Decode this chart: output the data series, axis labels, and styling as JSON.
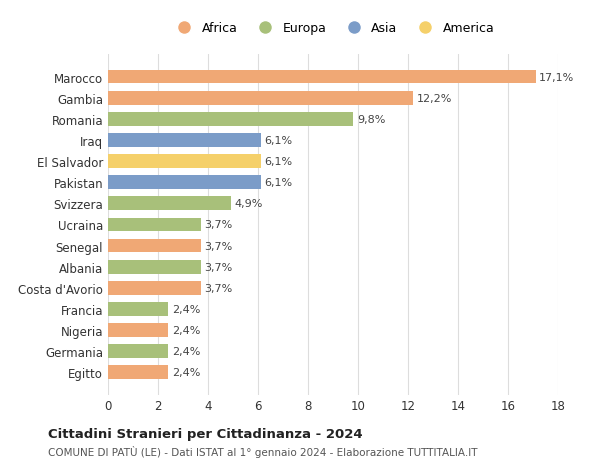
{
  "categories": [
    "Marocco",
    "Gambia",
    "Romania",
    "Iraq",
    "El Salvador",
    "Pakistan",
    "Svizzera",
    "Ucraina",
    "Senegal",
    "Albania",
    "Costa d'Avorio",
    "Francia",
    "Nigeria",
    "Germania",
    "Egitto"
  ],
  "values": [
    17.1,
    12.2,
    9.8,
    6.1,
    6.1,
    6.1,
    4.9,
    3.7,
    3.7,
    3.7,
    3.7,
    2.4,
    2.4,
    2.4,
    2.4
  ],
  "labels": [
    "17,1%",
    "12,2%",
    "9,8%",
    "6,1%",
    "6,1%",
    "6,1%",
    "4,9%",
    "3,7%",
    "3,7%",
    "3,7%",
    "3,7%",
    "2,4%",
    "2,4%",
    "2,4%",
    "2,4%"
  ],
  "continent": [
    "Africa",
    "Africa",
    "Europa",
    "Asia",
    "America",
    "Asia",
    "Europa",
    "Europa",
    "Africa",
    "Europa",
    "Africa",
    "Europa",
    "Africa",
    "Europa",
    "Africa"
  ],
  "colors": {
    "Africa": "#F0A875",
    "Europa": "#A8C07A",
    "Asia": "#7B9CC8",
    "America": "#F5D06A"
  },
  "legend_order": [
    "Africa",
    "Europa",
    "Asia",
    "America"
  ],
  "title": "Cittadini Stranieri per Cittadinanza - 2024",
  "subtitle": "COMUNE DI PATÙ (LE) - Dati ISTAT al 1° gennaio 2024 - Elaborazione TUTTITALIA.IT",
  "xlim": [
    0,
    18
  ],
  "xticks": [
    0,
    2,
    4,
    6,
    8,
    10,
    12,
    14,
    16,
    18
  ],
  "background_color": "#ffffff",
  "grid_color": "#dddddd"
}
